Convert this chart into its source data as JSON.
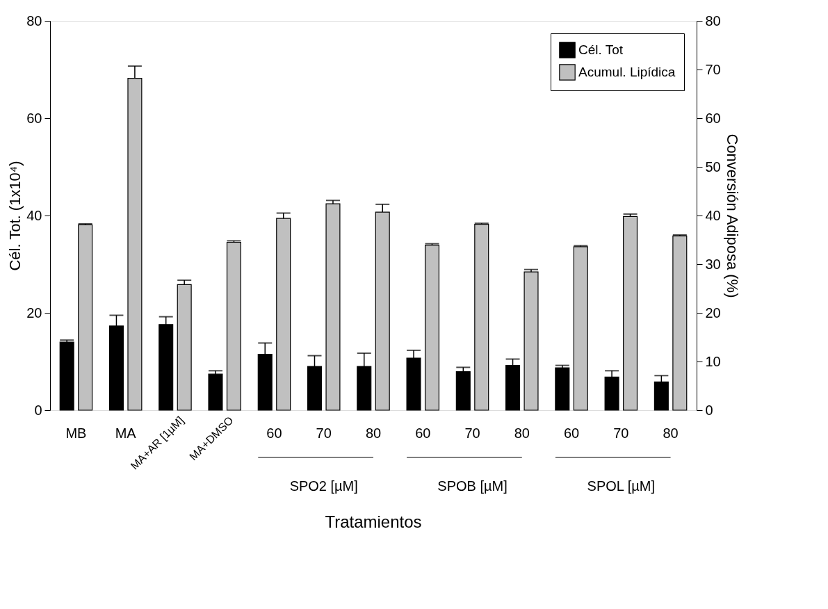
{
  "chart_data": {
    "type": "bar",
    "xlabel": "Tratamientos",
    "ylabel": "Cél. Tot. (1x10⁴)",
    "y2label": "Conversión Adiposa (%)",
    "categories": [
      "MB",
      "MA",
      "MA+AR [1µM]",
      "MA+DMSO",
      "60",
      "70",
      "80",
      "60",
      "70",
      "80",
      "60",
      "70",
      "80"
    ],
    "series": [
      {
        "name": "Cél. Tot",
        "color": "#000000",
        "values": [
          14.0,
          17.3,
          17.6,
          7.4,
          11.5,
          9.0,
          9.0,
          10.7,
          7.9,
          9.2,
          8.7,
          6.8,
          5.8
        ],
        "errors": [
          0.4,
          2.2,
          1.6,
          0.7,
          2.3,
          2.2,
          2.7,
          1.6,
          0.9,
          1.3,
          0.5,
          1.3,
          1.3
        ]
      },
      {
        "name": "Acumul. Lipídica",
        "color": "#c0c0c0",
        "axis": "y2",
        "values": [
          38.1,
          68.2,
          25.8,
          34.5,
          39.4,
          42.4,
          40.7,
          33.9,
          38.2,
          28.4,
          33.6,
          39.8,
          35.8
        ],
        "errors": [
          0.2,
          2.5,
          0.9,
          0.3,
          1.1,
          0.7,
          1.6,
          0.3,
          0.2,
          0.5,
          0.2,
          0.5,
          0.2
        ]
      }
    ],
    "ylim": [
      0,
      80
    ],
    "yticks": [
      0,
      20,
      40,
      60,
      80
    ],
    "y2lim": [
      0,
      80
    ],
    "y2ticks": [
      0,
      10,
      20,
      30,
      40,
      50,
      60,
      70,
      80
    ],
    "annotations": [
      "SPO2 [µM]",
      "SPOB [µM]",
      "SPOL [µM]"
    ],
    "legend": "top right",
    "grid": false
  }
}
